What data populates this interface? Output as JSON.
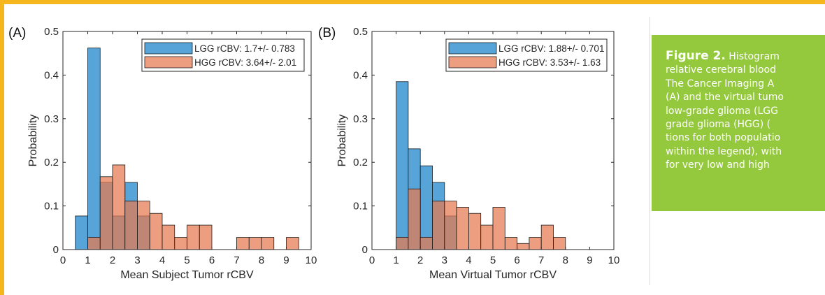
{
  "chart_data": [
    {
      "type": "bar",
      "panel_label": "(A)",
      "xlabel": "Mean Subject Tumor rCBV",
      "ylabel": "Probability",
      "xlim": [
        0,
        10
      ],
      "ylim": [
        0,
        0.5
      ],
      "xticks": [
        "0",
        "1",
        "2",
        "3",
        "4",
        "5",
        "6",
        "7",
        "8",
        "9",
        "10"
      ],
      "yticks": [
        "0",
        "0.1",
        "0.2",
        "0.3",
        "0.4",
        "0.5"
      ],
      "bin_width": 0.5,
      "legend_position": "top-right",
      "series": [
        {
          "name": "LGG rCBV: 1.7+/- 0.783",
          "color": "#4e9fd6",
          "bins": [
            {
              "x0": 0.5,
              "value": 0.077
            },
            {
              "x0": 1.0,
              "value": 0.462
            },
            {
              "x0": 1.5,
              "value": 0.154
            },
            {
              "x0": 2.0,
              "value": 0.077
            },
            {
              "x0": 2.5,
              "value": 0.154
            },
            {
              "x0": 3.0,
              "value": 0.077
            }
          ]
        },
        {
          "name": "HGG rCBV: 3.64+/- 2.01",
          "color": "#e8794f",
          "bins": [
            {
              "x0": 1.0,
              "value": 0.028
            },
            {
              "x0": 1.5,
              "value": 0.167
            },
            {
              "x0": 2.0,
              "value": 0.194
            },
            {
              "x0": 2.5,
              "value": 0.111
            },
            {
              "x0": 3.0,
              "value": 0.111
            },
            {
              "x0": 3.5,
              "value": 0.083
            },
            {
              "x0": 4.0,
              "value": 0.056
            },
            {
              "x0": 4.5,
              "value": 0.028
            },
            {
              "x0": 5.0,
              "value": 0.056
            },
            {
              "x0": 5.5,
              "value": 0.056
            },
            {
              "x0": 7.0,
              "value": 0.028
            },
            {
              "x0": 7.5,
              "value": 0.028
            },
            {
              "x0": 8.0,
              "value": 0.028
            },
            {
              "x0": 9.0,
              "value": 0.028
            }
          ]
        }
      ]
    },
    {
      "type": "bar",
      "panel_label": "(B)",
      "xlabel": "Mean Virtual Tumor rCBV",
      "ylabel": "Probability",
      "xlim": [
        0,
        10
      ],
      "ylim": [
        0,
        0.5
      ],
      "xticks": [
        "0",
        "1",
        "2",
        "3",
        "4",
        "5",
        "6",
        "7",
        "8",
        "9",
        "10"
      ],
      "yticks": [
        "0",
        "0.1",
        "0.2",
        "0.3",
        "0.4",
        "0.5"
      ],
      "bin_width": 0.5,
      "legend_position": "top-right",
      "series": [
        {
          "name": "LGG rCBV: 1.88+/- 0.701",
          "color": "#4e9fd6",
          "bins": [
            {
              "x0": 1.0,
              "value": 0.385
            },
            {
              "x0": 1.5,
              "value": 0.231
            },
            {
              "x0": 2.0,
              "value": 0.192
            },
            {
              "x0": 2.5,
              "value": 0.154
            },
            {
              "x0": 3.0,
              "value": 0.077
            }
          ]
        },
        {
          "name": "HGG rCBV: 3.53+/- 1.63",
          "color": "#e8794f",
          "bins": [
            {
              "x0": 1.0,
              "value": 0.028
            },
            {
              "x0": 1.5,
              "value": 0.139
            },
            {
              "x0": 2.0,
              "value": 0.028
            },
            {
              "x0": 2.5,
              "value": 0.111
            },
            {
              "x0": 3.0,
              "value": 0.111
            },
            {
              "x0": 3.5,
              "value": 0.097
            },
            {
              "x0": 4.0,
              "value": 0.083
            },
            {
              "x0": 4.5,
              "value": 0.056
            },
            {
              "x0": 5.0,
              "value": 0.097
            },
            {
              "x0": 5.5,
              "value": 0.028
            },
            {
              "x0": 6.0,
              "value": 0.014
            },
            {
              "x0": 6.5,
              "value": 0.028
            },
            {
              "x0": 7.0,
              "value": 0.056
            },
            {
              "x0": 7.5,
              "value": 0.028
            }
          ]
        }
      ]
    }
  ],
  "caption": {
    "label": "Figure 2.",
    "lines": [
      " Histogram",
      "relative cerebral blood",
      "The Cancer Imaging A",
      "(A) and the virtual tumo",
      "low-grade glioma (LGG",
      "grade glioma (HGG) (",
      "tions for both populatio",
      "within the legend), with",
      "for very low and high"
    ]
  },
  "colors": {
    "frame": "#f6b71e",
    "caption_bg": "#94c93d",
    "lgg": "#4e9fd6",
    "hgg": "#e8794f"
  }
}
